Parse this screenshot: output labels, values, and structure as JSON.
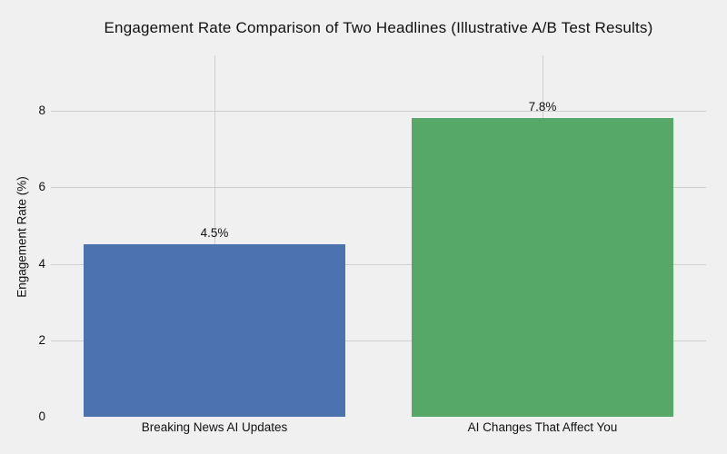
{
  "chart_data": {
    "type": "bar",
    "title": "Engagement Rate Comparison of Two Headlines (Illustrative A/B Test Results)",
    "xlabel": "",
    "ylabel": "Engagement Rate (%)",
    "categories": [
      "Breaking News AI Updates",
      "AI Changes That Affect You"
    ],
    "values": [
      4.5,
      7.8
    ],
    "value_labels": [
      "4.5%",
      "7.8%"
    ],
    "yticks": [
      0,
      2,
      4,
      6,
      8
    ],
    "ytick_labels": [
      "0",
      "2",
      "4",
      "6",
      "8"
    ],
    "ylim": [
      0,
      9.45
    ],
    "grid": true,
    "legend": false,
    "colors": {
      "bar_colors": [
        "#4c72b0",
        "#55a868"
      ],
      "background": "#f0f0f0",
      "gridline": "#cfcfcf",
      "text": "#111111"
    }
  }
}
